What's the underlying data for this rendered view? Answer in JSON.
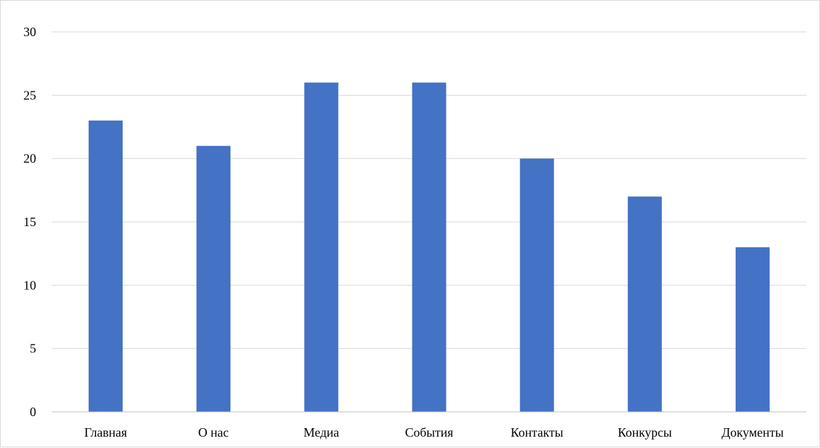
{
  "chart_data": {
    "type": "bar",
    "title": "",
    "xlabel": "",
    "ylabel": "",
    "categories": [
      "Главная",
      "О нас",
      "Медиа",
      "События",
      "Контакты",
      "Конкурсы",
      "Документы"
    ],
    "values": [
      23,
      21,
      26,
      26,
      20,
      17,
      13
    ],
    "ylim": [
      0,
      30
    ],
    "yticks": [
      "0",
      "5",
      "10",
      "15",
      "20",
      "25",
      "30"
    ],
    "grid": true,
    "legend": "none",
    "colors": {
      "bar": "#4472c4",
      "grid": "#d9d9d9",
      "axis": "#bfbfbf"
    }
  }
}
